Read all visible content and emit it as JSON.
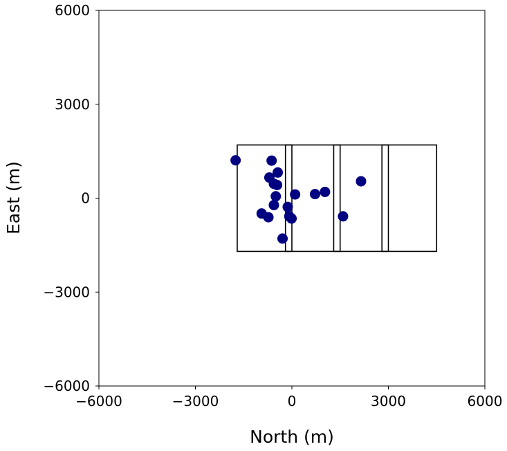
{
  "chart_data": {
    "type": "scatter",
    "title": "",
    "xlabel": "North (m)",
    "ylabel": "East (m)",
    "xlim": [
      -6000,
      6000
    ],
    "ylim": [
      -6000,
      6000
    ],
    "xticks": [
      -6000,
      -3000,
      0,
      3000,
      6000
    ],
    "yticks": [
      -6000,
      -3000,
      0,
      3000,
      6000
    ],
    "xtick_labels": [
      "−6000",
      "−3000",
      "0",
      "3000",
      "6000"
    ],
    "ytick_labels": [
      "−6000",
      "−3000",
      "0",
      "3000",
      "6000"
    ],
    "grid": false,
    "marker_color": "#000080",
    "points": [
      {
        "x": -1750,
        "y": 1210
      },
      {
        "x": -630,
        "y": 1200
      },
      {
        "x": -440,
        "y": 820
      },
      {
        "x": -700,
        "y": 660
      },
      {
        "x": -560,
        "y": 460
      },
      {
        "x": -460,
        "y": 420
      },
      {
        "x": -500,
        "y": 60
      },
      {
        "x": 100,
        "y": 120
      },
      {
        "x": 720,
        "y": 130
      },
      {
        "x": 1030,
        "y": 200
      },
      {
        "x": 2150,
        "y": 540
      },
      {
        "x": -560,
        "y": -220
      },
      {
        "x": -130,
        "y": -280
      },
      {
        "x": -940,
        "y": -490
      },
      {
        "x": -730,
        "y": -610
      },
      {
        "x": -80,
        "y": -580
      },
      {
        "x": -10,
        "y": -650
      },
      {
        "x": 1590,
        "y": -580
      },
      {
        "x": -290,
        "y": -1290
      }
    ],
    "rectangles": [
      {
        "x0": -1700,
        "x1": 4500,
        "y0": -1700,
        "y1": 1700
      },
      {
        "x0": -200,
        "x1": 0,
        "y0": -1700,
        "y1": 1700
      },
      {
        "x0": 1300,
        "x1": 1500,
        "y0": -1700,
        "y1": 1700
      },
      {
        "x0": 2800,
        "x1": 3000,
        "y0": -1700,
        "y1": 1700
      }
    ]
  }
}
